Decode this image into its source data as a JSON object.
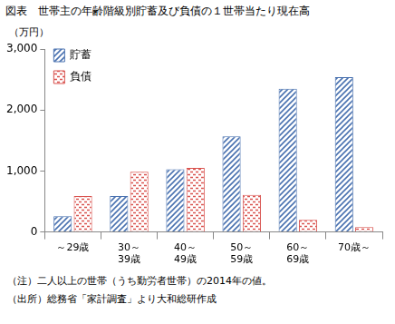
{
  "chart_data": {
    "type": "bar",
    "title": "図表　世帯主の年齢階級別貯蓄及び負債の１世帯当たり現在高",
    "y_label": "（万円）",
    "categories": [
      "～29歳",
      [
        "30～",
        "39歳"
      ],
      [
        "40～",
        "49歳"
      ],
      [
        "50～",
        "59歳"
      ],
      [
        "60～",
        "69歳"
      ],
      "70歳～"
    ],
    "series": [
      {
        "name": "貯蓄",
        "color": "#4a72b0",
        "values": [
          260,
          590,
          1030,
          1570,
          2350,
          2540
        ]
      },
      {
        "name": "負債",
        "color": "#d9534f",
        "values": [
          590,
          990,
          1050,
          610,
          200,
          80
        ]
      }
    ],
    "ylim": [
      0,
      3000
    ],
    "yticks": [
      0,
      {
        "value": 1000,
        "label": "1,000"
      },
      {
        "value": 2000,
        "label": "2,000"
      },
      {
        "value": 3000,
        "label": "3,000"
      }
    ],
    "grid": false,
    "legend": "top-left",
    "annotations": [
      "（注）二人以上の世帯（うち勤労者世帯）の2014年の値。",
      "（出所）総務省「家計調査」より大和総研作成"
    ]
  }
}
